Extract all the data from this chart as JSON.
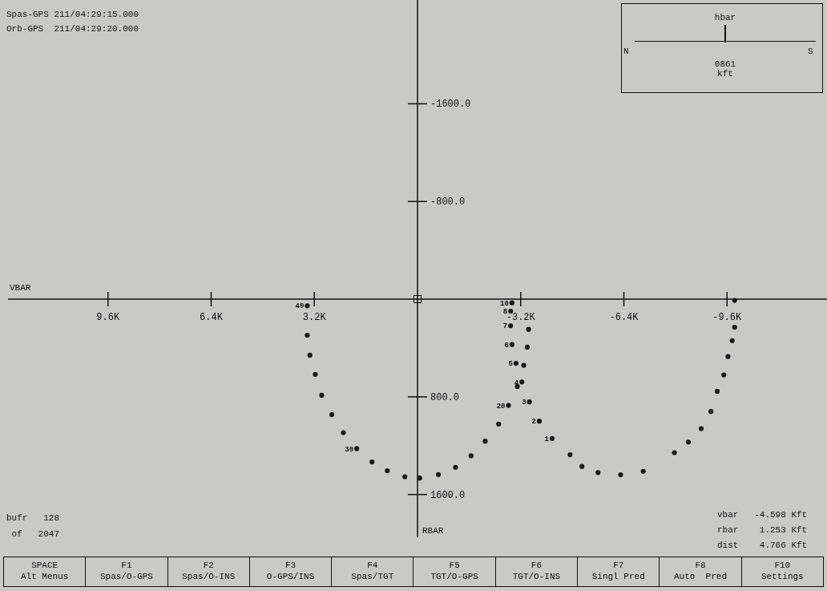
{
  "chart_data": {
    "type": "scatter",
    "xlabel": "VBAR",
    "ylabel": "RBAR",
    "xlim": [
      12700,
      -12700
    ],
    "xticks": [
      {
        "value": 9600,
        "label": "9.6K"
      },
      {
        "value": 6400,
        "label": "6.4K"
      },
      {
        "value": 3200,
        "label": "3.2K"
      },
      {
        "value": -3200,
        "label": "-3.2K"
      },
      {
        "value": -6400,
        "label": "-6.4K"
      },
      {
        "value": -9600,
        "label": "-9.6K"
      }
    ],
    "ylim": [
      1950,
      -2450
    ],
    "yticks": [
      {
        "value": -1600,
        "label": "-1600.0"
      },
      {
        "value": -800,
        "label": "-800.0"
      },
      {
        "value": 800,
        "label": "800.0"
      },
      {
        "value": 1600,
        "label": "1600.0"
      }
    ],
    "grid": false,
    "marker": "circle",
    "series": [
      {
        "color": "#1a1a1a",
        "x": [
          3419,
          3419,
          3337,
          3170,
          2971,
          2656,
          2300,
          1885,
          1411,
          938,
          391,
          -67,
          -647,
          -1178,
          -1660,
          -2099,
          -2515,
          -2822,
          -3095,
          -3055,
          -2930,
          -2888,
          -2888,
          -2930
        ],
        "values": [
          54,
          295,
          459,
          616,
          787,
          946,
          1093,
          1224,
          1333,
          1405,
          1454,
          1465,
          1436,
          1377,
          1283,
          1163,
          1023,
          870,
          715,
          525,
          372,
          218,
          98,
          30
        ]
      },
      {
        "color": "#1a1a1a",
        "x": [
          -3445,
          -3403,
          -3295,
          -3237,
          -3469,
          -3777,
          -4176
        ],
        "values": [
          247,
          393,
          542,
          678,
          841,
          999,
          1141
        ]
      },
      {
        "color": "#1a1a1a",
        "x": [
          -4731,
          -5100,
          -5600,
          -6300,
          -7000,
          -7968,
          -8400,
          -8798,
          -9100,
          -9296,
          -9500,
          -9629,
          -9760,
          -9836,
          -9836
        ],
        "values": [
          1274,
          1370,
          1420,
          1438,
          1410,
          1257,
          1170,
          1060,
          920,
          754,
          620,
          470,
          340,
          230,
          10
        ]
      }
    ],
    "annotations": [
      "Spas-GPS 211/04:29:15.000",
      "Orb-GPS  211/04:29:20.000",
      "hbar",
      "N",
      "S",
      "0861",
      "kft",
      "bufr   128",
      " of   2047",
      "vbar   -4.598 Kft",
      "rbar    1.253 Kft",
      "dist    4.766 Kft",
      "SPACE",
      "Alt Menus",
      "F1",
      "Spas/O-GPS",
      "F2",
      "Spas/O-INS",
      "F3",
      "O-GPS/INS",
      "F4",
      "Spas/TGT",
      "F5",
      "TGT/O-GPS",
      "F6",
      "TGT/O-INS",
      "F7",
      "Singl Pred",
      "F8",
      "Auto  Pred",
      "F10",
      "Settings",
      {
        "text": "40",
        "x": 3419,
        "y": 54
      },
      {
        "text": "10",
        "x": -2930,
        "y": 30
      },
      {
        "text": "30",
        "x": 1885,
        "y": 1224
      },
      {
        "text": "20",
        "x": -2822,
        "y": 870
      },
      {
        "text": "5",
        "x": -3055,
        "y": 525
      },
      {
        "text": "6",
        "x": -2930,
        "y": 372
      },
      {
        "text": "7",
        "x": -2888,
        "y": 218
      },
      {
        "text": "8",
        "x": -2888,
        "y": 98
      },
      {
        "text": "4",
        "x": -3237,
        "y": 678
      },
      {
        "text": "3",
        "x": -3469,
        "y": 841
      },
      {
        "text": "2",
        "x": -3777,
        "y": 999
      },
      {
        "text": "1",
        "x": -4176,
        "y": 1141
      }
    ]
  }
}
